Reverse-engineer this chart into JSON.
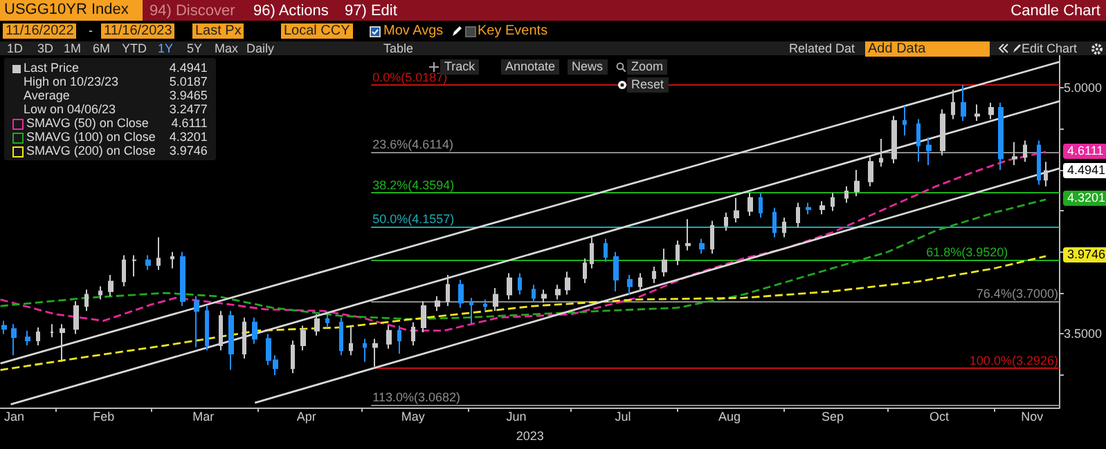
{
  "chart_data": {
    "type": "candlestick",
    "title": "USGG10YR Index",
    "subtitle": "Candle Chart",
    "xlabel": "2023",
    "xlim": [
      "2023-01-16",
      "2023-11-20"
    ],
    "xticks": [
      {
        "value": "2023-01-20",
        "label": "Jan"
      },
      {
        "value": "2023-02-01",
        "label": null
      },
      {
        "value": "2023-02-15",
        "label": "Feb"
      },
      {
        "value": "2023-03-01",
        "label": null
      },
      {
        "value": "2023-03-16",
        "label": "Mar"
      },
      {
        "value": "2023-04-01",
        "label": null
      },
      {
        "value": "2023-04-15",
        "label": "Apr"
      },
      {
        "value": "2023-05-01",
        "label": null
      },
      {
        "value": "2023-05-16",
        "label": "May"
      },
      {
        "value": "2023-06-01",
        "label": null
      },
      {
        "value": "2023-06-15",
        "label": "Jun"
      },
      {
        "value": "2023-07-01",
        "label": null
      },
      {
        "value": "2023-07-16",
        "label": "Jul"
      },
      {
        "value": "2023-08-01",
        "label": null
      },
      {
        "value": "2023-08-16",
        "label": "Aug"
      },
      {
        "value": "2023-09-01",
        "label": null
      },
      {
        "value": "2023-09-15",
        "label": "Sep"
      },
      {
        "value": "2023-10-01",
        "label": null
      },
      {
        "value": "2023-10-16",
        "label": "Oct"
      },
      {
        "value": "2023-11-01",
        "label": null
      },
      {
        "value": "2023-11-12",
        "label": "Nov"
      }
    ],
    "ylim": [
      3.05,
      5.2
    ],
    "yticks": [
      {
        "value": 3.25,
        "label": null
      },
      {
        "value": 3.5,
        "label": "3.5000"
      },
      {
        "value": 3.75,
        "label": null
      },
      {
        "value": 4,
        "label": null
      },
      {
        "value": 4.25,
        "label": null
      },
      {
        "value": 4.5,
        "label": null
      },
      {
        "value": 4.75,
        "label": null
      },
      {
        "value": 5,
        "label": "5.0000"
      }
    ],
    "grid": false,
    "legend": "top left",
    "marker": "none",
    "series": [
      {
        "name": "Last Price",
        "color": "#c8c8c8",
        "colors": [
          "#2090ff",
          "#2090ff",
          "#2090ff",
          "#c8c8c8",
          "#c8c8c8",
          "#c8c8c8",
          "#c8c8c8",
          "#c8c8c8",
          "#c8c8c8",
          "#c8c8c8",
          "#c8c8c8",
          "#c8c8c8",
          "#2090ff",
          "#c8c8c8",
          "#c8c8c8",
          "#2090ff",
          "#2090ff",
          "#2090ff",
          "#c8c8c8",
          "#2090ff",
          "#c8c8c8",
          "#2090ff",
          "#2090ff",
          "#2090ff",
          "#c8c8c8",
          "#c8c8c8",
          "#c8c8c8",
          "#2090ff",
          "#2090ff",
          "#c8c8c8",
          "#2090ff",
          "#c8c8c8",
          "#c8c8c8",
          "#2090ff",
          "#c8c8c8",
          "#c8c8c8",
          "#c8c8c8",
          "#c8c8c8",
          "#2090ff",
          "#2090ff",
          "#2090ff",
          "#c8c8c8",
          "#c8c8c8",
          "#2090ff",
          "#2090ff",
          "#c8c8c8",
          "#c8c8c8",
          "#c8c8c8",
          "#c8c8c8",
          "#c8c8c8",
          "#2090ff",
          "#2090ff",
          "#2090ff",
          "#c8c8c8",
          "#c8c8c8",
          "#c8c8c8",
          "#c8c8c8",
          "#c8c8c8",
          "#2090ff",
          "#c8c8c8",
          "#c8c8c8",
          "#c8c8c8",
          "#c8c8c8",
          "#2090ff",
          "#2090ff",
          "#c8c8c8",
          "#c8c8c8",
          "#2090ff",
          "#c8c8c8",
          "#c8c8c8",
          "#c8c8c8",
          "#c8c8c8",
          "#c8c8c8",
          "#c8c8c8",
          "#c8c8c8",
          "#2090ff",
          "#2090ff",
          "#2090ff",
          "#c8c8c8",
          "#c8c8c8",
          "#2090ff",
          "#c8c8c8",
          "#c8c8c8",
          "#2090ff",
          "#c8c8c8",
          "#c8c8c8",
          "#2090ff",
          "#c8c8c8"
        ],
        "x": [
          "2023-01-17",
          "2023-01-20",
          "2023-01-24",
          "2023-01-27",
          "2023-01-31",
          "2023-02-03",
          "2023-02-07",
          "2023-02-10",
          "2023-02-14",
          "2023-02-17",
          "2023-02-21",
          "2023-02-24",
          "2023-02-28",
          "2023-03-03",
          "2023-03-07",
          "2023-03-10",
          "2023-03-14",
          "2023-03-17",
          "2023-03-21",
          "2023-03-24",
          "2023-03-28",
          "2023-03-31",
          "2023-04-04",
          "2023-04-06",
          "2023-04-11",
          "2023-04-14",
          "2023-04-18",
          "2023-04-21",
          "2023-04-25",
          "2023-04-28",
          "2023-05-02",
          "2023-05-05",
          "2023-05-09",
          "2023-05-12",
          "2023-05-16",
          "2023-05-19",
          "2023-05-23",
          "2023-05-26",
          "2023-05-30",
          "2023-06-02",
          "2023-06-06",
          "2023-06-09",
          "2023-06-13",
          "2023-06-16",
          "2023-06-20",
          "2023-06-23",
          "2023-06-27",
          "2023-06-30",
          "2023-07-05",
          "2023-07-07",
          "2023-07-11",
          "2023-07-14",
          "2023-07-18",
          "2023-07-21",
          "2023-07-25",
          "2023-07-28",
          "2023-08-01",
          "2023-08-04",
          "2023-08-08",
          "2023-08-11",
          "2023-08-15",
          "2023-08-18",
          "2023-08-22",
          "2023-08-25",
          "2023-08-29",
          "2023-09-01",
          "2023-09-05",
          "2023-09-08",
          "2023-09-12",
          "2023-09-15",
          "2023-09-19",
          "2023-09-22",
          "2023-09-26",
          "2023-09-29",
          "2023-10-03",
          "2023-10-06",
          "2023-10-10",
          "2023-10-13",
          "2023-10-17",
          "2023-10-20",
          "2023-10-23",
          "2023-10-27",
          "2023-10-31",
          "2023-11-03",
          "2023-11-07",
          "2023-11-10",
          "2023-11-14",
          "2023-11-16"
        ],
        "ohlc": [
          [
            3.55,
            3.58,
            3.5,
            3.53
          ],
          [
            3.53,
            3.56,
            3.37,
            3.48
          ],
          [
            3.48,
            3.52,
            3.43,
            3.46
          ],
          [
            3.46,
            3.54,
            3.43,
            3.51
          ],
          [
            3.51,
            3.56,
            3.48,
            3.51
          ],
          [
            3.51,
            3.56,
            3.33,
            3.53
          ],
          [
            3.53,
            3.7,
            3.5,
            3.67
          ],
          [
            3.67,
            3.77,
            3.64,
            3.74
          ],
          [
            3.74,
            3.79,
            3.71,
            3.76
          ],
          [
            3.76,
            3.86,
            3.73,
            3.82
          ],
          [
            3.82,
            3.98,
            3.79,
            3.95
          ],
          [
            3.95,
            3.98,
            3.85,
            3.95
          ],
          [
            3.95,
            3.98,
            3.89,
            3.92
          ],
          [
            3.92,
            4.09,
            3.89,
            3.96
          ],
          [
            3.96,
            4.0,
            3.9,
            3.97
          ],
          [
            3.97,
            4.0,
            3.67,
            3.7
          ],
          [
            3.7,
            3.73,
            3.42,
            3.64
          ],
          [
            3.64,
            3.67,
            3.4,
            3.43
          ],
          [
            3.43,
            3.64,
            3.4,
            3.61
          ],
          [
            3.61,
            3.64,
            3.28,
            3.38
          ],
          [
            3.38,
            3.6,
            3.35,
            3.57
          ],
          [
            3.57,
            3.6,
            3.44,
            3.47
          ],
          [
            3.47,
            3.5,
            3.31,
            3.34
          ],
          [
            3.34,
            3.37,
            3.2477,
            3.29
          ],
          [
            3.29,
            3.46,
            3.26,
            3.43
          ],
          [
            3.43,
            3.55,
            3.4,
            3.52
          ],
          [
            3.52,
            3.62,
            3.49,
            3.59
          ],
          [
            3.59,
            3.62,
            3.54,
            3.57
          ],
          [
            3.57,
            3.6,
            3.37,
            3.4
          ],
          [
            3.4,
            3.55,
            3.37,
            3.44
          ],
          [
            3.44,
            3.47,
            3.33,
            3.42
          ],
          [
            3.42,
            3.47,
            3.3,
            3.44
          ],
          [
            3.44,
            3.55,
            3.41,
            3.52
          ],
          [
            3.52,
            3.55,
            3.38,
            3.46
          ],
          [
            3.46,
            3.57,
            3.43,
            3.54
          ],
          [
            3.54,
            3.7,
            3.51,
            3.67
          ],
          [
            3.67,
            3.73,
            3.64,
            3.7
          ],
          [
            3.7,
            3.86,
            3.67,
            3.8
          ],
          [
            3.8,
            3.83,
            3.66,
            3.69
          ],
          [
            3.69,
            3.72,
            3.56,
            3.68
          ],
          [
            3.68,
            3.71,
            3.64,
            3.67
          ],
          [
            3.67,
            3.78,
            3.64,
            3.74
          ],
          [
            3.74,
            3.87,
            3.71,
            3.84
          ],
          [
            3.84,
            3.87,
            3.74,
            3.77
          ],
          [
            3.77,
            3.8,
            3.69,
            3.72
          ],
          [
            3.72,
            3.77,
            3.69,
            3.74
          ],
          [
            3.74,
            3.8,
            3.71,
            3.77
          ],
          [
            3.77,
            3.88,
            3.74,
            3.84
          ],
          [
            3.84,
            3.96,
            3.81,
            3.93
          ],
          [
            3.93,
            4.09,
            3.9,
            4.05
          ],
          [
            4.05,
            4.08,
            3.94,
            3.97
          ],
          [
            3.97,
            4.0,
            3.76,
            3.83
          ],
          [
            3.83,
            3.86,
            3.74,
            3.79
          ],
          [
            3.79,
            3.87,
            3.76,
            3.84
          ],
          [
            3.84,
            3.91,
            3.81,
            3.88
          ],
          [
            3.88,
            4.02,
            3.85,
            3.95
          ],
          [
            3.95,
            4.07,
            3.92,
            4.04
          ],
          [
            4.04,
            4.2,
            4.01,
            4.05
          ],
          [
            4.05,
            4.08,
            3.99,
            4.02
          ],
          [
            4.02,
            4.19,
            3.99,
            4.16
          ],
          [
            4.16,
            4.24,
            4.13,
            4.21
          ],
          [
            4.21,
            4.33,
            4.18,
            4.25
          ],
          [
            4.25,
            4.36,
            4.22,
            4.33
          ],
          [
            4.33,
            4.36,
            4.21,
            4.24
          ],
          [
            4.24,
            4.27,
            4.09,
            4.12
          ],
          [
            4.12,
            4.21,
            4.09,
            4.18
          ],
          [
            4.18,
            4.3,
            4.15,
            4.27
          ],
          [
            4.27,
            4.3,
            4.23,
            4.26
          ],
          [
            4.26,
            4.31,
            4.23,
            4.28
          ],
          [
            4.28,
            4.36,
            4.25,
            4.33
          ],
          [
            4.33,
            4.4,
            4.3,
            4.37
          ],
          [
            4.37,
            4.5,
            4.34,
            4.43
          ],
          [
            4.43,
            4.58,
            4.4,
            4.55
          ],
          [
            4.55,
            4.69,
            4.52,
            4.57
          ],
          [
            4.57,
            4.83,
            4.54,
            4.8
          ],
          [
            4.8,
            4.89,
            4.71,
            4.78
          ],
          [
            4.78,
            4.81,
            4.55,
            4.65
          ],
          [
            4.65,
            4.7,
            4.53,
            4.62
          ],
          [
            4.62,
            4.87,
            4.59,
            4.84
          ],
          [
            4.84,
            4.99,
            4.81,
            4.91
          ],
          [
            4.91,
            5.0187,
            4.8,
            4.83
          ],
          [
            4.83,
            4.9,
            4.8,
            4.84
          ],
          [
            4.84,
            4.91,
            4.81,
            4.88
          ],
          [
            4.88,
            4.91,
            4.5,
            4.57
          ],
          [
            4.57,
            4.67,
            4.53,
            4.58
          ],
          [
            4.58,
            4.68,
            4.55,
            4.65
          ],
          [
            4.65,
            4.68,
            4.41,
            4.44
          ],
          [
            4.44,
            4.55,
            4.4,
            4.4941
          ]
        ]
      },
      {
        "name": "SMAVG (50)  on Close",
        "type": "line",
        "color": "#e8289c",
        "line_style": "dashed",
        "x": [
          "2023-01-16",
          "2023-02-01",
          "2023-02-15",
          "2023-03-01",
          "2023-03-08",
          "2023-03-20",
          "2023-04-03",
          "2023-04-20",
          "2023-05-01",
          "2023-05-15",
          "2023-05-25",
          "2023-06-10",
          "2023-07-01",
          "2023-07-20",
          "2023-08-05",
          "2023-08-20",
          "2023-09-01",
          "2023-09-15",
          "2023-10-01",
          "2023-10-15",
          "2023-10-25",
          "2023-11-05",
          "2023-11-16"
        ],
        "values": [
          3.71,
          3.62,
          3.58,
          3.68,
          3.72,
          3.69,
          3.65,
          3.64,
          3.6,
          3.52,
          3.52,
          3.6,
          3.62,
          3.72,
          3.86,
          3.96,
          4.02,
          4.12,
          4.27,
          4.4,
          4.48,
          4.56,
          4.6111
        ]
      },
      {
        "name": "SMAVG (100)  on Close",
        "type": "line",
        "color": "#21a821",
        "line_style": "dashed",
        "x": [
          "2023-01-16",
          "2023-02-10",
          "2023-03-05",
          "2023-03-20",
          "2023-04-05",
          "2023-04-25",
          "2023-05-15",
          "2023-06-01",
          "2023-06-20",
          "2023-07-10",
          "2023-08-01",
          "2023-08-20",
          "2023-09-10",
          "2023-10-01",
          "2023-10-15",
          "2023-11-01",
          "2023-11-16"
        ],
        "values": [
          3.67,
          3.72,
          3.75,
          3.73,
          3.66,
          3.61,
          3.59,
          3.6,
          3.62,
          3.64,
          3.66,
          3.74,
          3.87,
          4.0,
          4.13,
          4.24,
          4.3201
        ]
      },
      {
        "name": "SMAVG (200)  on Close",
        "type": "line",
        "color": "#f0e61e",
        "line_style": "dashed",
        "x": [
          "2023-01-16",
          "2023-02-10",
          "2023-03-05",
          "2023-04-01",
          "2023-04-25",
          "2023-05-20",
          "2023-06-20",
          "2023-07-20",
          "2023-08-20",
          "2023-09-15",
          "2023-10-10",
          "2023-11-01",
          "2023-11-16"
        ],
        "values": [
          3.28,
          3.36,
          3.43,
          3.52,
          3.54,
          3.6,
          3.67,
          3.71,
          3.72,
          3.76,
          3.82,
          3.9,
          3.9746
        ]
      },
      {
        "type": "line",
        "color": "#d8d8d8",
        "x": [
          "2023-01-16",
          "2023-11-20"
        ],
        "values": [
          3.32,
          5.16
        ]
      },
      {
        "type": "line",
        "color": "#d8d8d8",
        "x": [
          "2023-01-19",
          "2023-11-20"
        ],
        "values": [
          3.07,
          4.92
        ]
      },
      {
        "type": "line",
        "color": "#d8d8d8",
        "x": [
          "2023-03-31",
          "2023-11-20"
        ],
        "values": [
          3.08,
          4.51
        ]
      }
    ],
    "ref_lines": [
      {
        "axis": "y",
        "value": 5.0187,
        "label": "0.0%(5.0187)",
        "color": "#c81010"
      },
      {
        "axis": "y",
        "value": 4.6114,
        "label": "23.6%(4.6114)",
        "color": "#8c8c8c"
      },
      {
        "axis": "y",
        "value": 4.3594,
        "label": "38.2%(4.3594)",
        "color": "#1eb41e"
      },
      {
        "axis": "y",
        "value": 4.1557,
        "label": "50.0%(4.1557)",
        "color": "#1eaab4"
      },
      {
        "axis": "y",
        "value": 3.952,
        "label": "61.8%(3.9520)",
        "color": "#1eb41e"
      },
      {
        "axis": "y",
        "value": 3.7,
        "label": "76.4%(3.7000)",
        "color": "#8c8c8c"
      },
      {
        "axis": "y",
        "value": 3.2926,
        "label": "100.0%(3.2926)",
        "color": "#c81010"
      },
      {
        "axis": "y",
        "value": 3.0682,
        "label": "113.0%(3.0682)",
        "color": "#8c8c8c"
      }
    ],
    "annotations": [
      "94) Discover",
      "96) Actions",
      "97) Edit",
      "11/16/2022",
      "-",
      "11/16/2023",
      "Last Px",
      "Local CCY",
      "Mov Avgs",
      "Key Events",
      "1D",
      "3D",
      "1M",
      "6M",
      "YTD",
      "1Y",
      "5Y",
      "Max",
      "Daily",
      "Table",
      "Related Dat",
      "Add Data",
      "Edit Chart",
      "Track",
      "Annotate",
      "News",
      "Zoom",
      "Reset",
      "4.4941",
      "High on 10/23/23",
      "5.0187",
      "Average",
      "3.9465",
      "Low on 04/06/23",
      "3.2477",
      "4.6111",
      "4.3201",
      "3.9746",
      "4.4941",
      "4.6111",
      "4.3201",
      "3.9746"
    ]
  }
}
